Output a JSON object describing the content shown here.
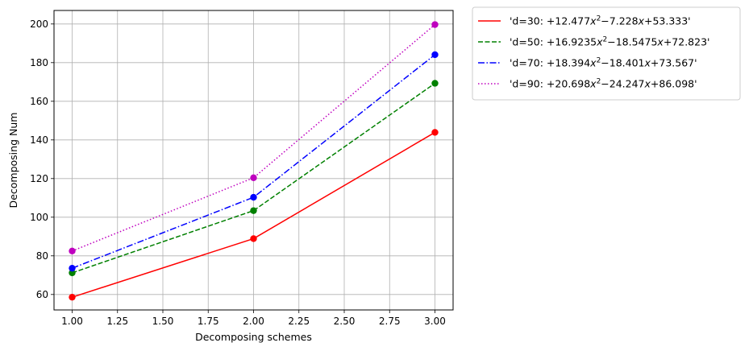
{
  "chart_data": {
    "type": "line",
    "xlabel": "Decomposing schemes",
    "ylabel": "Decomposing Num",
    "xlim": [
      0.9,
      3.1
    ],
    "ylim": [
      52,
      207
    ],
    "xticks": [
      1.0,
      1.25,
      1.5,
      1.75,
      2.0,
      2.25,
      2.5,
      2.75,
      3.0
    ],
    "xtick_labels": [
      "1.00",
      "1.25",
      "1.50",
      "1.75",
      "2.00",
      "2.25",
      "2.50",
      "2.75",
      "3.00"
    ],
    "yticks": [
      60,
      80,
      100,
      120,
      140,
      160,
      180,
      200
    ],
    "ytick_labels": [
      "60",
      "80",
      "100",
      "120",
      "140",
      "160",
      "180",
      "200"
    ],
    "grid": true,
    "legend_placement": "outside upper right",
    "x": [
      1,
      2,
      3
    ],
    "series": [
      {
        "name": "'d=30: +12.477x^2-7.228x+53.333'",
        "legend": {
          "pre": "'d=30: +12.477",
          "var1": "x",
          "sup": "2",
          "mid": "−7.228",
          "var2": "x",
          "post": "+53.333'"
        },
        "values": [
          58.6,
          88.9,
          143.9
        ],
        "color": "#ff0000",
        "linestyle": "solid"
      },
      {
        "name": "'d=50: +16.9235x^2-18.5475x+72.823'",
        "legend": {
          "pre": "'d=50: +16.9235",
          "var1": "x",
          "sup": "2",
          "mid": "−18.5475",
          "var2": "x",
          "post": "+72.823'"
        },
        "values": [
          71.2,
          103.4,
          169.3
        ],
        "color": "#008000",
        "linestyle": "dashed"
      },
      {
        "name": "'d=70: +18.394x^2-18.401x+73.567'",
        "legend": {
          "pre": "'d=70: +18.394",
          "var1": "x",
          "sup": "2",
          "mid": "−18.401",
          "var2": "x",
          "post": "+73.567'"
        },
        "values": [
          73.6,
          110.3,
          184.1
        ],
        "color": "#0000ff",
        "linestyle": "dashdot"
      },
      {
        "name": "'d=90: +20.698x^2-24.247x+86.098'",
        "legend": {
          "pre": "'d=90: +20.698",
          "var1": "x",
          "sup": "2",
          "mid": "−24.247",
          "var2": "x",
          "post": "+86.098'"
        },
        "values": [
          82.5,
          120.4,
          199.7
        ],
        "color": "#bf00bf",
        "linestyle": "dotted"
      }
    ]
  }
}
